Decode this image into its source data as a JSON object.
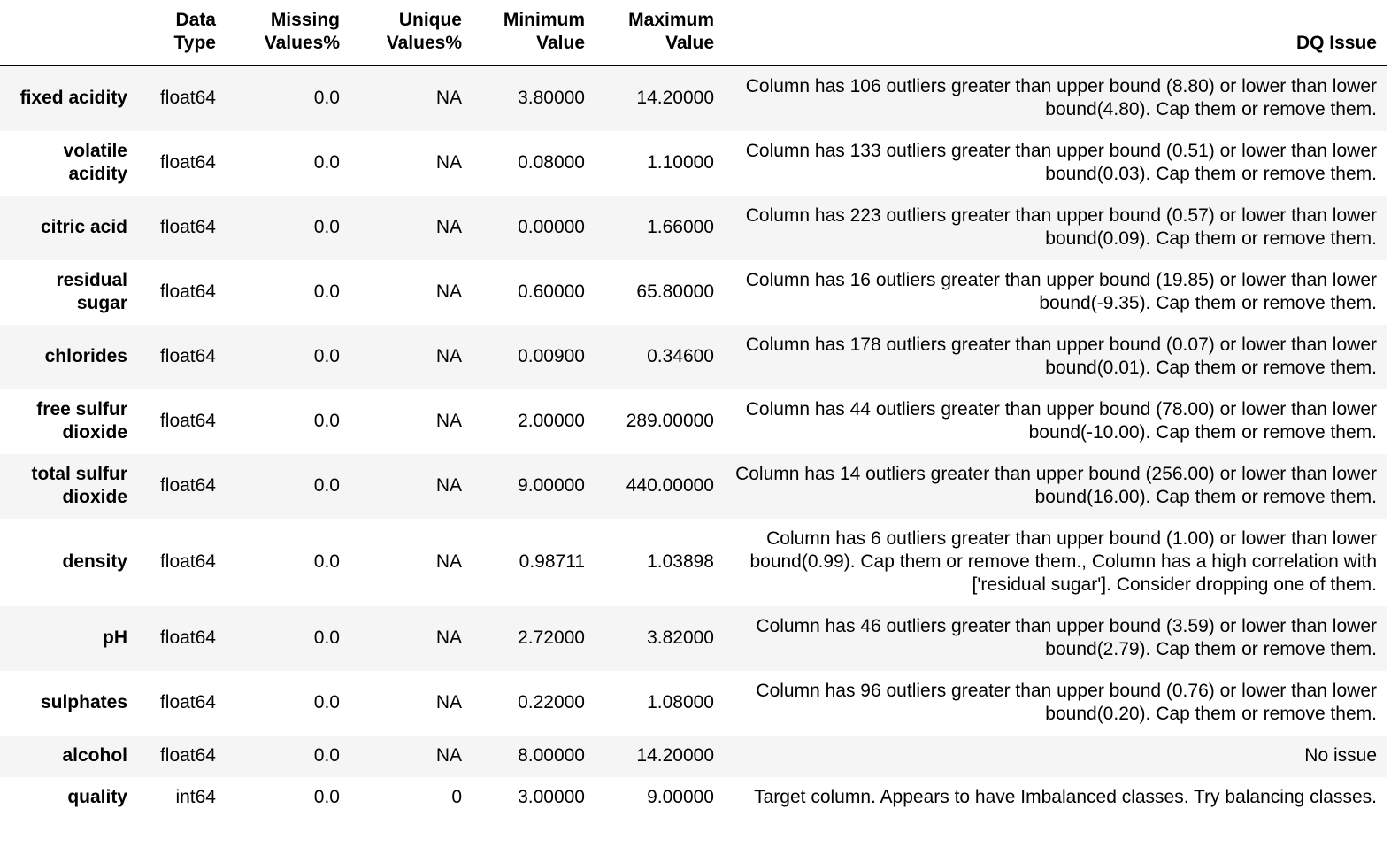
{
  "table": {
    "headers": [
      "",
      "Data Type",
      "Missing Values%",
      "Unique Values%",
      "Minimum Value",
      "Maximum Value",
      "DQ Issue"
    ],
    "header_lines": [
      [
        "",
        ""
      ],
      [
        "Data",
        "Type"
      ],
      [
        "Missing",
        "Values%"
      ],
      [
        "Unique",
        "Values%"
      ],
      [
        "Minimum",
        "Value"
      ],
      [
        "Maximum",
        "Value"
      ],
      [
        "DQ Issue"
      ]
    ],
    "rows": [
      [
        "fixed acidity",
        "float64",
        "0.0",
        "NA",
        "3.80000",
        "14.20000",
        "Column has 106 outliers greater than upper bound (8.80) or lower than lower bound(4.80). Cap them or remove them."
      ],
      [
        "volatile acidity",
        "float64",
        "0.0",
        "NA",
        "0.08000",
        "1.10000",
        "Column has 133 outliers greater than upper bound (0.51) or lower than lower bound(0.03). Cap them or remove them."
      ],
      [
        "citric acid",
        "float64",
        "0.0",
        "NA",
        "0.00000",
        "1.66000",
        "Column has 223 outliers greater than upper bound (0.57) or lower than lower bound(0.09). Cap them or remove them."
      ],
      [
        "residual sugar",
        "float64",
        "0.0",
        "NA",
        "0.60000",
        "65.80000",
        "Column has 16 outliers greater than upper bound (19.85) or lower than lower bound(-9.35). Cap them or remove them."
      ],
      [
        "chlorides",
        "float64",
        "0.0",
        "NA",
        "0.00900",
        "0.34600",
        "Column has 178 outliers greater than upper bound (0.07) or lower than lower bound(0.01). Cap them or remove them."
      ],
      [
        "free sulfur dioxide",
        "float64",
        "0.0",
        "NA",
        "2.00000",
        "289.00000",
        "Column has 44 outliers greater than upper bound (78.00) or lower than lower bound(-10.00). Cap them or remove them."
      ],
      [
        "total sulfur dioxide",
        "float64",
        "0.0",
        "NA",
        "9.00000",
        "440.00000",
        "Column has 14 outliers greater than upper bound (256.00) or lower than lower bound(16.00). Cap them or remove them."
      ],
      [
        "density",
        "float64",
        "0.0",
        "NA",
        "0.98711",
        "1.03898",
        "Column has 6 outliers greater than upper bound (1.00) or lower than lower bound(0.99). Cap them or remove them., Column has a high correlation with ['residual sugar']. Consider dropping one of them."
      ],
      [
        "pH",
        "float64",
        "0.0",
        "NA",
        "2.72000",
        "3.82000",
        "Column has 46 outliers greater than upper bound (3.59) or lower than lower bound(2.79). Cap them or remove them."
      ],
      [
        "sulphates",
        "float64",
        "0.0",
        "NA",
        "0.22000",
        "1.08000",
        "Column has 96 outliers greater than upper bound (0.76) or lower than lower bound(0.20). Cap them or remove them."
      ],
      [
        "alcohol",
        "float64",
        "0.0",
        "NA",
        "8.00000",
        "14.20000",
        "No issue"
      ],
      [
        "quality",
        "int64",
        "0.0",
        "0",
        "3.00000",
        "9.00000",
        "Target column. Appears to have Imbalanced classes. Try balancing classes."
      ]
    ]
  }
}
